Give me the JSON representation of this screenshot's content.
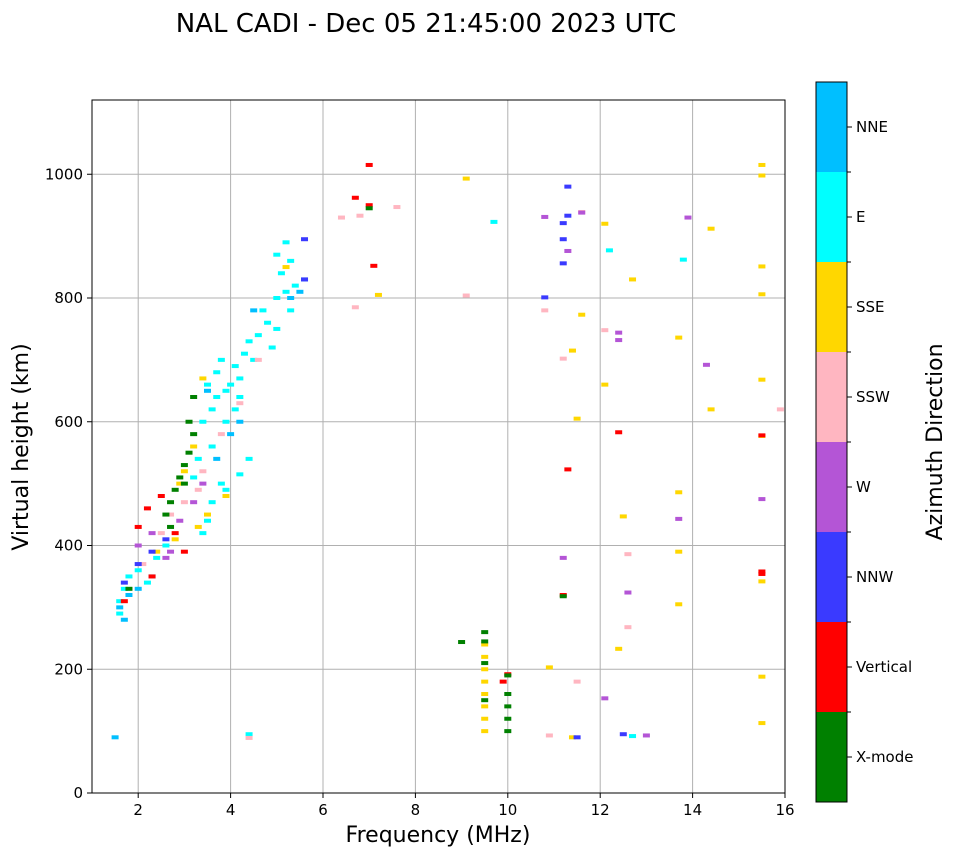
{
  "chart_data": {
    "type": "scatter",
    "title": "NAL CADI - Dec 05 21:45:00 2023 UTC",
    "xlabel": "Frequency (MHz)",
    "ylabel": "Virtual height (km)",
    "xlim": [
      1,
      16
    ],
    "ylim": [
      0,
      1120
    ],
    "xticks": [
      2,
      4,
      6,
      8,
      10,
      12,
      14,
      16
    ],
    "yticks": [
      0,
      200,
      400,
      600,
      800,
      1000
    ],
    "grid": true,
    "colorbar": {
      "label": "Azimuth Direction",
      "categories": [
        {
          "name": "X-mode",
          "color": "#008000"
        },
        {
          "name": "Vertical",
          "color": "#ff0000"
        },
        {
          "name": "NNW",
          "color": "#3a3aff"
        },
        {
          "name": "W",
          "color": "#b455d6"
        },
        {
          "name": "SSW",
          "color": "#ffb6c1"
        },
        {
          "name": "SSE",
          "color": "#ffd700"
        },
        {
          "name": "E",
          "color": "#00ffff"
        },
        {
          "name": "NNE",
          "color": "#00bfff"
        }
      ]
    },
    "series": [
      {
        "name": "E",
        "points": [
          [
            1.6,
            290
          ],
          [
            1.6,
            310
          ],
          [
            1.7,
            330
          ],
          [
            1.8,
            350
          ],
          [
            2.0,
            360
          ],
          [
            2.2,
            340
          ],
          [
            2.4,
            380
          ],
          [
            2.6,
            400
          ],
          [
            3.4,
            420
          ],
          [
            3.5,
            440
          ],
          [
            3.6,
            470
          ],
          [
            3.8,
            500
          ],
          [
            3.2,
            510
          ],
          [
            3.3,
            540
          ],
          [
            3.6,
            560
          ],
          [
            3.4,
            600
          ],
          [
            3.6,
            620
          ],
          [
            3.7,
            640
          ],
          [
            3.9,
            650
          ],
          [
            4.0,
            660
          ],
          [
            4.2,
            670
          ],
          [
            4.1,
            690
          ],
          [
            3.8,
            700
          ],
          [
            4.3,
            710
          ],
          [
            4.4,
            730
          ],
          [
            4.6,
            740
          ],
          [
            4.8,
            760
          ],
          [
            4.7,
            780
          ],
          [
            5.0,
            800
          ],
          [
            5.2,
            810
          ],
          [
            5.4,
            820
          ],
          [
            5.1,
            840
          ],
          [
            5.3,
            860
          ],
          [
            5.0,
            870
          ],
          [
            5.2,
            890
          ],
          [
            5.0,
            750
          ],
          [
            4.9,
            720
          ],
          [
            5.3,
            780
          ],
          [
            4.5,
            700
          ],
          [
            4.2,
            640
          ],
          [
            3.9,
            600
          ],
          [
            4.1,
            620
          ],
          [
            3.5,
            660
          ],
          [
            3.7,
            680
          ],
          [
            4.4,
            540
          ],
          [
            4.2,
            515
          ],
          [
            3.9,
            490
          ],
          [
            4.4,
            95
          ],
          [
            9.7,
            923
          ],
          [
            12.2,
            877
          ],
          [
            13.8,
            862
          ],
          [
            12.7,
            92
          ]
        ]
      },
      {
        "name": "NNE",
        "points": [
          [
            1.6,
            300
          ],
          [
            1.7,
            280
          ],
          [
            1.8,
            320
          ],
          [
            2.0,
            330
          ],
          [
            2.3,
            350
          ],
          [
            3.5,
            650
          ],
          [
            4.2,
            600
          ],
          [
            4.5,
            780
          ],
          [
            5.6,
            830
          ],
          [
            5.5,
            810
          ],
          [
            5.3,
            800
          ],
          [
            1.5,
            90
          ],
          [
            3.7,
            540
          ],
          [
            4.0,
            580
          ]
        ]
      },
      {
        "name": "SSE",
        "points": [
          [
            2.4,
            390
          ],
          [
            2.8,
            410
          ],
          [
            3.3,
            430
          ],
          [
            3.5,
            450
          ],
          [
            3.9,
            480
          ],
          [
            2.9,
            500
          ],
          [
            3.0,
            520
          ],
          [
            3.2,
            560
          ],
          [
            3.4,
            670
          ],
          [
            5.2,
            850
          ],
          [
            7.2,
            805
          ],
          [
            9.1,
            993
          ],
          [
            9.5,
            100
          ],
          [
            9.5,
            120
          ],
          [
            9.5,
            140
          ],
          [
            9.5,
            160
          ],
          [
            9.5,
            180
          ],
          [
            9.5,
            200
          ],
          [
            9.5,
            220
          ],
          [
            9.5,
            240
          ],
          [
            11.5,
            605
          ],
          [
            11.6,
            773
          ],
          [
            11.4,
            715
          ],
          [
            12.1,
            660
          ],
          [
            12.1,
            920
          ],
          [
            12.5,
            447
          ],
          [
            12.7,
            830
          ],
          [
            12.4,
            233
          ],
          [
            13.7,
            736
          ],
          [
            13.7,
            486
          ],
          [
            13.7,
            390
          ],
          [
            13.7,
            305
          ],
          [
            14.4,
            912
          ],
          [
            14.4,
            620
          ],
          [
            15.5,
            1015
          ],
          [
            15.5,
            998
          ],
          [
            15.5,
            851
          ],
          [
            15.5,
            806
          ],
          [
            15.5,
            668
          ],
          [
            15.5,
            577
          ],
          [
            15.5,
            342
          ],
          [
            15.5,
            188
          ],
          [
            15.5,
            113
          ],
          [
            11.4,
            90
          ],
          [
            10.9,
            203
          ]
        ]
      },
      {
        "name": "SSW",
        "points": [
          [
            2.1,
            370
          ],
          [
            2.5,
            420
          ],
          [
            2.7,
            450
          ],
          [
            3.0,
            470
          ],
          [
            3.3,
            490
          ],
          [
            3.4,
            520
          ],
          [
            3.8,
            580
          ],
          [
            4.2,
            630
          ],
          [
            4.6,
            700
          ],
          [
            6.4,
            930
          ],
          [
            6.7,
            785
          ],
          [
            6.8,
            933
          ],
          [
            7.6,
            947
          ],
          [
            9.1,
            804
          ],
          [
            10.9,
            93
          ],
          [
            11.2,
            702
          ],
          [
            10.8,
            780
          ],
          [
            12.1,
            748
          ],
          [
            12.6,
            386
          ],
          [
            12.6,
            268
          ],
          [
            11.5,
            180
          ],
          [
            15.9,
            620
          ],
          [
            11.6,
            939
          ],
          [
            4.4,
            89
          ]
        ]
      },
      {
        "name": "W",
        "points": [
          [
            2.0,
            400
          ],
          [
            2.3,
            420
          ],
          [
            2.6,
            380
          ],
          [
            2.9,
            440
          ],
          [
            3.2,
            470
          ],
          [
            3.4,
            500
          ],
          [
            2.7,
            390
          ],
          [
            10.8,
            931
          ],
          [
            11.3,
            876
          ],
          [
            11.2,
            380
          ],
          [
            12.4,
            744
          ],
          [
            12.4,
            732
          ],
          [
            12.6,
            324
          ],
          [
            12.1,
            153
          ],
          [
            13.0,
            93
          ],
          [
            13.9,
            930
          ],
          [
            13.7,
            443
          ],
          [
            14.3,
            692
          ],
          [
            15.5,
            475
          ],
          [
            11.6,
            938
          ]
        ]
      },
      {
        "name": "NNW",
        "points": [
          [
            1.7,
            340
          ],
          [
            2.0,
            370
          ],
          [
            2.3,
            390
          ],
          [
            2.6,
            410
          ],
          [
            5.6,
            895
          ],
          [
            5.6,
            830
          ],
          [
            10.8,
            801
          ],
          [
            11.3,
            980
          ],
          [
            11.2,
            921
          ],
          [
            11.2,
            856
          ],
          [
            11.3,
            933
          ],
          [
            11.5,
            90
          ],
          [
            11.2,
            895
          ],
          [
            12.5,
            95
          ]
        ]
      },
      {
        "name": "Vertical",
        "points": [
          [
            1.7,
            310
          ],
          [
            2.0,
            430
          ],
          [
            2.2,
            460
          ],
          [
            2.5,
            480
          ],
          [
            2.8,
            420
          ],
          [
            3.0,
            390
          ],
          [
            2.3,
            350
          ],
          [
            6.7,
            962
          ],
          [
            7.0,
            1015
          ],
          [
            7.0,
            950
          ],
          [
            7.1,
            852
          ],
          [
            11.3,
            523
          ],
          [
            11.2,
            320
          ],
          [
            12.4,
            583
          ],
          [
            15.5,
            358
          ],
          [
            15.5,
            354
          ],
          [
            15.5,
            578
          ],
          [
            9.9,
            180
          ],
          [
            10.0,
            192
          ]
        ]
      },
      {
        "name": "X-mode",
        "points": [
          [
            1.8,
            330
          ],
          [
            2.6,
            450
          ],
          [
            2.7,
            470
          ],
          [
            2.8,
            490
          ],
          [
            2.9,
            510
          ],
          [
            3.0,
            530
          ],
          [
            3.1,
            550
          ],
          [
            3.2,
            580
          ],
          [
            3.1,
            600
          ],
          [
            3.2,
            640
          ],
          [
            3.0,
            500
          ],
          [
            2.7,
            430
          ],
          [
            9.5,
            245
          ],
          [
            9.5,
            260
          ],
          [
            9.5,
            210
          ],
          [
            9.5,
            150
          ],
          [
            9.0,
            244
          ],
          [
            10.0,
            100
          ],
          [
            10.0,
            120
          ],
          [
            10.0,
            140
          ],
          [
            10.0,
            160
          ],
          [
            10.0,
            190
          ],
          [
            11.2,
            318
          ],
          [
            7.0,
            945
          ]
        ]
      }
    ]
  }
}
